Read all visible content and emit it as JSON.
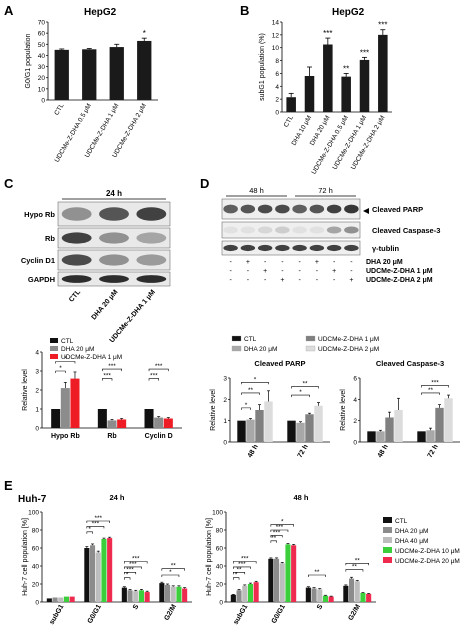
{
  "panels": {
    "A": {
      "letter": "A",
      "title": "HepG2",
      "ylabel": "G0/G1 population",
      "categories": [
        "CTL",
        "UDCMe-Z-DHA 0.5 μM",
        "UDCMe-Z-DHA 1 μM",
        "UDCMe-Z-DHA 2 μM"
      ],
      "values": [
        45,
        45.5,
        47.5,
        53
      ],
      "errors": [
        0.8,
        0.7,
        2.5,
        2.5
      ],
      "marks": [
        "",
        "",
        "",
        "*"
      ],
      "ylim": [
        0,
        70
      ],
      "yticks": [
        0,
        10,
        20,
        30,
        40,
        50,
        60,
        70
      ],
      "color": "#1a1a1a"
    },
    "B": {
      "letter": "B",
      "title": "HepG2",
      "ylabel": "subG1 population (%)",
      "categories": [
        "CTL",
        "DHA 10 μM",
        "DHA 20 μM",
        "UDCMe-Z-DHA 0.5 μM",
        "UDCMe-Z-DHA 1 μM",
        "UDCMe-Z-DHA 2 μM"
      ],
      "values": [
        2.3,
        5.6,
        10.5,
        5.5,
        8.1,
        12.0
      ],
      "errors": [
        0.6,
        1.4,
        1.0,
        0.5,
        0.4,
        0.8
      ],
      "marks": [
        "",
        "",
        "***",
        "**",
        "***",
        "***"
      ],
      "ylim": [
        0,
        14
      ],
      "yticks": [
        0,
        2,
        4,
        6,
        8,
        10,
        12,
        14
      ],
      "color": "#1a1a1a"
    },
    "C": {
      "letter": "C",
      "header": "24 h",
      "rows": [
        "Hypo Rb",
        "Rb",
        "Cyclin D1",
        "GAPDH"
      ],
      "lanes": [
        "CTL",
        "DHA 20 μM",
        "UDCMe-Z-DHA 1 μM"
      ]
    },
    "D": {
      "letter": "D",
      "times": [
        "48 h",
        "72 h"
      ],
      "rows": [
        "Cleaved PARP",
        "Cleaved Caspase-3",
        "γ-tublin"
      ],
      "treatments": [
        {
          "label": "DHA 20 μM",
          "signs": [
            "-",
            "+",
            "-",
            "-",
            "-",
            "+",
            "-",
            "-"
          ]
        },
        {
          "label": "UDCMe-Z-DHA 1 μM",
          "signs": [
            "-",
            "-",
            "+",
            "-",
            "-",
            "-",
            "+",
            "-"
          ]
        },
        {
          "label": "UDCMe-Z-DHA 2 μM",
          "signs": [
            "-",
            "-",
            "-",
            "+",
            "-",
            "-",
            "-",
            "+"
          ]
        }
      ]
    },
    "E": {
      "letter": "E",
      "cell": "Huh-7"
    }
  },
  "chart_data": [
    {
      "id": "A",
      "type": "bar",
      "title": "HepG2",
      "ylabel": "G0/G1 population",
      "categories": [
        "CTL",
        "UDCMe-Z-DHA 0.5 μM",
        "UDCMe-Z-DHA 1 μM",
        "UDCMe-Z-DHA 2 μM"
      ],
      "values": [
        45,
        45.5,
        47.5,
        53
      ],
      "ylim": [
        0,
        70
      ]
    },
    {
      "id": "B",
      "type": "bar",
      "title": "HepG2",
      "ylabel": "subG1 population (%)",
      "categories": [
        "CTL",
        "DHA 10 μM",
        "DHA 20 μM",
        "UDCMe-Z-DHA 0.5 μM",
        "UDCMe-Z-DHA 1 μM",
        "UDCMe-Z-DHA 2 μM"
      ],
      "values": [
        2.3,
        5.6,
        10.5,
        5.5,
        8.1,
        12.0
      ],
      "ylim": [
        0,
        14
      ]
    },
    {
      "id": "C-quant",
      "type": "bar",
      "ylabel": "Relative level",
      "categories": [
        "Hypo Rb",
        "Rb",
        "Cyclin D"
      ],
      "series": [
        {
          "name": "CTL",
          "color": "#111111",
          "values": [
            1.0,
            1.0,
            1.0
          ],
          "errors": [
            0,
            0,
            0
          ]
        },
        {
          "name": "DHA 20 μM",
          "color": "#8c8c8c",
          "values": [
            2.1,
            0.4,
            0.55
          ],
          "errors": [
            0.3,
            0.05,
            0.05
          ]
        },
        {
          "name": "UDCMe-Z-DHA 1 μM",
          "color": "#ee1c24",
          "values": [
            2.6,
            0.45,
            0.5
          ],
          "errors": [
            0.35,
            0.05,
            0.05
          ]
        }
      ],
      "ylim": [
        0,
        4
      ],
      "yticks": [
        0,
        1,
        2,
        3,
        4
      ],
      "legend": "top-left",
      "brackets": [
        {
          "group": 0,
          "from": 0,
          "to": 1,
          "level": 3.0,
          "label": "*"
        },
        {
          "group": 0,
          "from": 0,
          "to": 2,
          "level": 3.5,
          "label": "*"
        },
        {
          "group": 1,
          "from": 0,
          "to": 1,
          "level": 2.6,
          "label": "***"
        },
        {
          "group": 1,
          "from": 0,
          "to": 2,
          "level": 3.1,
          "label": "***"
        },
        {
          "group": 2,
          "from": 0,
          "to": 1,
          "level": 2.6,
          "label": "***"
        },
        {
          "group": 2,
          "from": 0,
          "to": 2,
          "level": 3.1,
          "label": "***"
        }
      ]
    },
    {
      "id": "D-parp",
      "type": "bar",
      "title": "Cleaved PARP",
      "ylabel": "Relative level",
      "categories": [
        "48 h",
        "72 h"
      ],
      "series": [
        {
          "name": "CTL",
          "color": "#111111",
          "values": [
            1.0,
            1.0
          ],
          "errors": [
            0,
            0
          ]
        },
        {
          "name": "DHA 20 μM",
          "color": "#a8a8a8",
          "values": [
            1.05,
            0.9
          ],
          "errors": [
            0.05,
            0.05
          ]
        },
        {
          "name": "UDCMe-Z-DHA 1 μM",
          "color": "#808080",
          "values": [
            1.5,
            1.3
          ],
          "errors": [
            0.25,
            0.05
          ]
        },
        {
          "name": "UDCMe-Z-DHA 2 μM",
          "color": "#dcdcdc",
          "values": [
            1.9,
            1.7
          ],
          "errors": [
            0.5,
            0.15
          ]
        }
      ],
      "ylim": [
        0,
        3
      ],
      "yticks": [
        0,
        1,
        2,
        3
      ],
      "legend": "top",
      "brackets": [
        {
          "group": 0,
          "from": 0,
          "to": 1,
          "level": 1.6,
          "label": "*"
        },
        {
          "group": 0,
          "from": 0,
          "to": 2,
          "level": 2.3,
          "label": "**"
        },
        {
          "group": 0,
          "from": 0,
          "to": 3,
          "level": 2.8,
          "label": "*"
        },
        {
          "group": 1,
          "from": 0,
          "to": 2,
          "level": 2.2,
          "label": "*"
        },
        {
          "group": 1,
          "from": 0,
          "to": 3,
          "level": 2.6,
          "label": "**"
        }
      ]
    },
    {
      "id": "D-casp3",
      "type": "bar",
      "title": "Cleaved Caspase-3",
      "ylabel": "Relative level",
      "categories": [
        "48 h",
        "72 h"
      ],
      "series": [
        {
          "name": "CTL",
          "color": "#111111",
          "values": [
            1.0,
            1.0
          ],
          "errors": [
            0,
            0
          ]
        },
        {
          "name": "DHA 20 μM",
          "color": "#a8a8a8",
          "values": [
            1.0,
            1.1
          ],
          "errors": [
            0.1,
            0.2
          ]
        },
        {
          "name": "UDCMe-Z-DHA 1 μM",
          "color": "#808080",
          "values": [
            2.3,
            3.2
          ],
          "errors": [
            0.5,
            0.3
          ]
        },
        {
          "name": "UDCMe-Z-DHA 2 μM",
          "color": "#dcdcdc",
          "values": [
            3.0,
            4.1
          ],
          "errors": [
            1.1,
            0.3
          ]
        }
      ],
      "ylim": [
        0,
        6
      ],
      "yticks": [
        0,
        2,
        4,
        6
      ],
      "brackets": [
        {
          "group": 1,
          "from": 0,
          "to": 2,
          "level": 4.6,
          "label": "**"
        },
        {
          "group": 1,
          "from": 0,
          "to": 3,
          "level": 5.3,
          "label": "***"
        }
      ]
    },
    {
      "id": "E-24h",
      "type": "bar",
      "title": "24 h",
      "ylabel": "Huh-7 cell population [%]",
      "categories": [
        "subG1",
        "G0/G1",
        "S",
        "G2/M"
      ],
      "series": [
        {
          "name": "CTL",
          "color": "#111111",
          "values": [
            4,
            60,
            16,
            21
          ],
          "errors": [
            0,
            1.5,
            1,
            1
          ]
        },
        {
          "name": "DHA 20 μM",
          "color": "#8c8c8c",
          "values": [
            5,
            63,
            13,
            19
          ],
          "errors": [
            0,
            1.5,
            1,
            1
          ]
        },
        {
          "name": "DHA 40 μM",
          "color": "#bdbdbd",
          "values": [
            5,
            55,
            12,
            17
          ],
          "errors": [
            0,
            1.5,
            1,
            1
          ]
        },
        {
          "name": "UDCMe-Z-DHA 10 μM",
          "color": "#3ccf3c",
          "values": [
            6,
            70,
            13,
            17
          ],
          "errors": [
            0,
            1,
            1,
            1
          ]
        },
        {
          "name": "UDCMe-Z-DHA 20 μM",
          "color": "#ee2b4f",
          "values": [
            6,
            71,
            11,
            15
          ],
          "errors": [
            0,
            1,
            1,
            1
          ]
        }
      ],
      "ylim": [
        0,
        100
      ],
      "yticks": [
        0,
        20,
        40,
        60,
        80,
        100
      ],
      "brackets": [
        {
          "group": 1,
          "from": 0,
          "to": 1,
          "level": 78,
          "label": "*"
        },
        {
          "group": 1,
          "from": 0,
          "to": 3,
          "level": 84,
          "label": "***"
        },
        {
          "group": 1,
          "from": 0,
          "to": 4,
          "level": 90,
          "label": "***"
        },
        {
          "group": 2,
          "from": 0,
          "to": 1,
          "level": 27,
          "label": "*"
        },
        {
          "group": 2,
          "from": 0,
          "to": 2,
          "level": 33,
          "label": "***"
        },
        {
          "group": 2,
          "from": 0,
          "to": 3,
          "level": 39,
          "label": "***"
        },
        {
          "group": 2,
          "from": 0,
          "to": 4,
          "level": 45,
          "label": "***"
        },
        {
          "group": 3,
          "from": 0,
          "to": 3,
          "level": 30,
          "label": "*"
        },
        {
          "group": 3,
          "from": 0,
          "to": 4,
          "level": 37,
          "label": "**"
        }
      ]
    },
    {
      "id": "E-48h",
      "type": "bar",
      "title": "48 h",
      "ylabel": "Huh-7 cell population [%]",
      "categories": [
        "subG1",
        "G0/G1",
        "S",
        "G2/M"
      ],
      "series": [
        {
          "name": "CTL",
          "color": "#111111",
          "values": [
            8,
            48,
            16,
            18
          ],
          "errors": [
            0.5,
            1,
            1,
            1
          ]
        },
        {
          "name": "DHA 20 μM",
          "color": "#8c8c8c",
          "values": [
            13,
            48,
            15,
            26
          ],
          "errors": [
            1,
            1,
            1,
            1.5
          ]
        },
        {
          "name": "DHA 40 μM",
          "color": "#bdbdbd",
          "values": [
            18,
            43,
            14,
            23
          ],
          "errors": [
            1,
            1,
            1,
            1
          ]
        },
        {
          "name": "UDCMe-Z-DHA 10 μM",
          "color": "#3ccf3c",
          "values": [
            20,
            64,
            7,
            10
          ],
          "errors": [
            1,
            1,
            0.5,
            0.5
          ]
        },
        {
          "name": "UDCMe-Z-DHA 20 μM",
          "color": "#ee2b4f",
          "values": [
            22,
            63,
            6,
            9
          ],
          "errors": [
            1,
            1,
            0.5,
            0.5
          ]
        }
      ],
      "ylim": [
        0,
        100
      ],
      "yticks": [
        0,
        20,
        40,
        60,
        80,
        100
      ],
      "legend": "right",
      "brackets": [
        {
          "group": 0,
          "from": 0,
          "to": 1,
          "level": 27,
          "label": "*"
        },
        {
          "group": 0,
          "from": 0,
          "to": 2,
          "level": 33,
          "label": "**"
        },
        {
          "group": 0,
          "from": 0,
          "to": 3,
          "level": 39,
          "label": "***"
        },
        {
          "group": 0,
          "from": 0,
          "to": 4,
          "level": 45,
          "label": "***"
        },
        {
          "group": 1,
          "from": 0,
          "to": 1,
          "level": 68,
          "label": "**"
        },
        {
          "group": 1,
          "from": 0,
          "to": 2,
          "level": 74,
          "label": "***"
        },
        {
          "group": 1,
          "from": 0,
          "to": 3,
          "level": 80,
          "label": "***"
        },
        {
          "group": 1,
          "from": 0,
          "to": 4,
          "level": 86,
          "label": "*"
        },
        {
          "group": 2,
          "from": 0,
          "to": 3,
          "level": 30,
          "label": "**"
        },
        {
          "group": 3,
          "from": 0,
          "to": 3,
          "level": 36,
          "label": "**"
        },
        {
          "group": 3,
          "from": 0,
          "to": 4,
          "level": 43,
          "label": "**"
        }
      ]
    }
  ],
  "colors": {
    "accent": "#ee1c24",
    "green": "#3ccf3c",
    "dark": "#111111"
  }
}
